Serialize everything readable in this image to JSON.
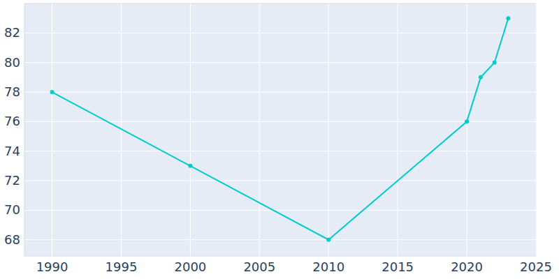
{
  "chart_data": {
    "type": "line",
    "x": [
      1990,
      2000,
      2010,
      2020,
      2021,
      2022,
      2023
    ],
    "values": [
      78,
      73,
      68,
      76,
      79,
      80,
      83
    ],
    "color": "#00cccc",
    "marker": "circle",
    "xlim": [
      1988,
      2025
    ],
    "xticks": [
      1990,
      1995,
      2000,
      2005,
      2010,
      2015,
      2020,
      2025
    ],
    "ylim": [
      66.9,
      84
    ],
    "yticks": [
      68,
      70,
      72,
      74,
      76,
      78,
      80,
      82
    ],
    "grid": true
  }
}
